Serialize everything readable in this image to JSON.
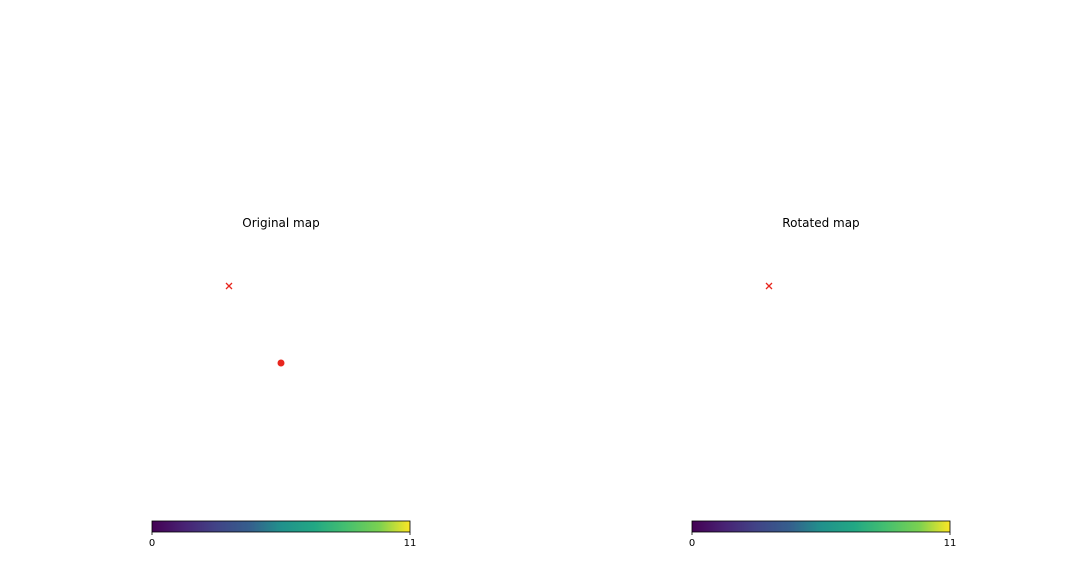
{
  "chart_data": [
    {
      "type": "heatmap",
      "projection": "mollweide",
      "title": "Original map",
      "colormap": "viridis",
      "vmin": 0,
      "vmax": 11,
      "colorbar_ticks": [
        "0",
        "11"
      ],
      "markers": [
        {
          "symbol": "x",
          "color": "#e8261e",
          "lon": 80,
          "lat": 45
        },
        {
          "symbol": "o",
          "color": "#e8261e",
          "lon": 0,
          "lat": 0
        }
      ]
    },
    {
      "type": "heatmap",
      "projection": "mollweide",
      "title": "Rotated map",
      "colormap": "viridis",
      "vmin": 0,
      "vmax": 11,
      "colorbar_ticks": [
        "0",
        "11"
      ],
      "markers": [
        {
          "symbol": "x",
          "color": "#e8261e",
          "lon": 80,
          "lat": 45
        }
      ]
    }
  ]
}
